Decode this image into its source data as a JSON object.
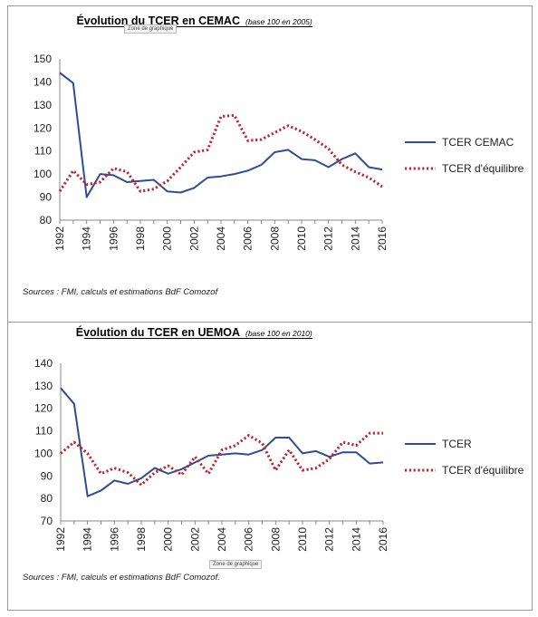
{
  "colors": {
    "actual": "#2e4d94",
    "equilibrium": "#c0262e",
    "axis": "#888888"
  },
  "panels": [
    {
      "title": "Évolution du TCER en CEMAC",
      "subtitle": "(base 100 en 2005)",
      "zone_tag": "Zone de graphique",
      "source": "Sources : FMI, calculs et estimations BdF Comozof"
    },
    {
      "title": "Évolution du TCER en UEMOA",
      "subtitle": "(base 100 en 2010)",
      "zone_tag": "Zone de graphique",
      "source": "Sources : FMI, calculs et estimations BdF Comozof."
    }
  ],
  "chart_data": [
    {
      "type": "line",
      "title": "Évolution du TCER en CEMAC",
      "subtitle": "(base 100 en 2005)",
      "x": [
        1992,
        1993,
        1994,
        1995,
        1996,
        1997,
        1998,
        1999,
        2000,
        2001,
        2002,
        2003,
        2004,
        2005,
        2006,
        2007,
        2008,
        2009,
        2010,
        2011,
        2012,
        2013,
        2014,
        2015,
        2016
      ],
      "x_tick_labels": [
        "1992",
        "1994",
        "1996",
        "1998",
        "2000",
        "2002",
        "2004",
        "2006",
        "2008",
        "2010",
        "2012",
        "2014",
        "2016"
      ],
      "ylim": [
        80,
        150
      ],
      "y_ticks": [
        80,
        90,
        100,
        110,
        120,
        130,
        140,
        150
      ],
      "grid": false,
      "legend_position": "right",
      "series": [
        {
          "name": "TCER CEMAC",
          "style": "solid",
          "values": [
            144,
            139.5,
            90,
            100,
            99.5,
            96.5,
            97,
            97.5,
            92.5,
            92,
            94,
            98.5,
            99,
            100,
            101.5,
            104,
            109.5,
            110.5,
            106.5,
            106,
            103,
            106.5,
            109,
            103,
            102
          ]
        },
        {
          "name": "TCER d'équilibre",
          "style": "dotted",
          "values": [
            92.5,
            101.5,
            95.5,
            96.5,
            102.5,
            101,
            92.5,
            93.5,
            97,
            103,
            109.5,
            110.5,
            125,
            125.5,
            114.5,
            115,
            118,
            121,
            118.5,
            115,
            111,
            104,
            101,
            98.5,
            94.5
          ]
        }
      ]
    },
    {
      "type": "line",
      "title": "Évolution du TCER en UEMOA",
      "subtitle": "(base 100 en 2010)",
      "x": [
        1992,
        1993,
        1994,
        1995,
        1996,
        1997,
        1998,
        1999,
        2000,
        2001,
        2002,
        2003,
        2004,
        2005,
        2006,
        2007,
        2008,
        2009,
        2010,
        2011,
        2012,
        2013,
        2014,
        2015,
        2016
      ],
      "x_tick_labels": [
        "1992",
        "1994",
        "1996",
        "1998",
        "2000",
        "2002",
        "2004",
        "2006",
        "2008",
        "2010",
        "2012",
        "2014",
        "2016"
      ],
      "ylim": [
        70,
        140
      ],
      "y_ticks": [
        70,
        80,
        90,
        100,
        110,
        120,
        130,
        140
      ],
      "grid": false,
      "legend_position": "right",
      "series": [
        {
          "name": "TCER",
          "style": "solid",
          "values": [
            129,
            122,
            81,
            83.5,
            88,
            86.5,
            89,
            93.5,
            91,
            93,
            96,
            99,
            99.5,
            100,
            99.5,
            101.5,
            107,
            107,
            100,
            101,
            98.5,
            100.5,
            100.5,
            95.5,
            96
          ]
        },
        {
          "name": "TCER d'équilibre",
          "style": "dotted",
          "values": [
            100,
            105,
            100,
            91,
            93.5,
            91.5,
            86,
            91.5,
            94.5,
            90.5,
            98.5,
            91,
            101.5,
            103.5,
            108,
            104.5,
            92.5,
            101.5,
            92.5,
            93.5,
            97.5,
            105,
            103.5,
            109,
            109
          ]
        }
      ]
    }
  ]
}
